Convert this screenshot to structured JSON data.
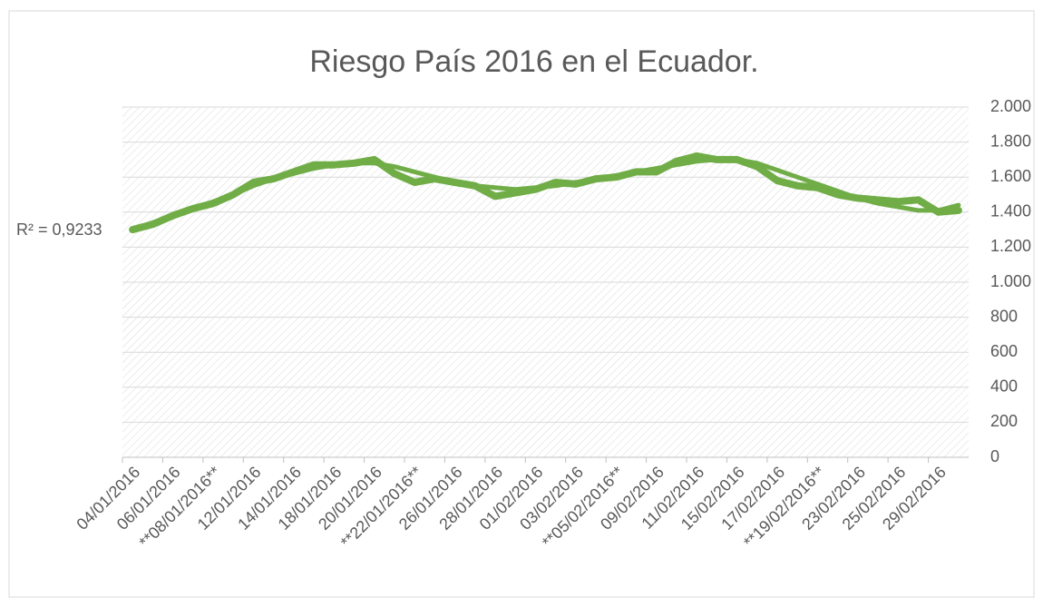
{
  "chart_data": {
    "type": "line",
    "title": "Riesgo País 2016 en el Ecuador.",
    "annotations": [
      "R² = 0,9233"
    ],
    "categories": [
      "04/01/2016",
      null,
      "06/01/2016",
      null,
      "**08/01/2016**",
      null,
      "12/01/2016",
      null,
      "14/01/2016",
      null,
      "18/01/2016",
      null,
      "20/01/2016",
      null,
      "**22/01/2016**",
      null,
      "26/01/2016",
      null,
      "28/01/2016",
      null,
      "01/02/2016",
      null,
      "03/02/2016",
      null,
      "**05/02/2016**",
      null,
      "09/02/2016",
      null,
      "11/02/2016",
      null,
      "15/02/2016",
      null,
      "17/02/2016",
      null,
      "**19/02/2016**",
      null,
      "23/02/2016",
      null,
      "25/02/2016",
      null,
      "29/02/2016",
      null
    ],
    "series": [
      {
        "color": "#70ad47",
        "values": [
          1300,
          1330,
          1380,
          1420,
          1450,
          1500,
          1570,
          1590,
          1630,
          1670,
          1670,
          1680,
          1700,
          1620,
          1570,
          1590,
          1570,
          1550,
          1490,
          1510,
          1530,
          1570,
          1560,
          1590,
          1600,
          1630,
          1630,
          1690,
          1720,
          1700,
          1700,
          1660,
          1580,
          1550,
          1540,
          1500,
          1480,
          1470,
          1460,
          1470,
          1400,
          1410
        ]
      },
      {
        "color": "#70ad47",
        "values": [
          1300,
          1340,
          1380,
          1420,
          1460,
          1500,
          1550,
          1590,
          1620,
          1650,
          1670,
          1680,
          1680,
          1660,
          1630,
          1600,
          1570,
          1550,
          1540,
          1530,
          1540,
          1550,
          1570,
          1590,
          1610,
          1630,
          1650,
          1670,
          1690,
          1700,
          1700,
          1680,
          1640,
          1600,
          1560,
          1520,
          1480,
          1450,
          1430,
          1410,
          1410,
          1440
        ]
      }
    ],
    "ylim": [
      0,
      2000
    ],
    "yticks": [
      0,
      200,
      400,
      600,
      800,
      {
        "value": 1000,
        "label": "1.000"
      },
      {
        "value": 1200,
        "label": "1.200"
      },
      {
        "value": 1400,
        "label": "1.400"
      },
      {
        "value": 1600,
        "label": "1.600"
      },
      {
        "value": 1800,
        "label": "1.800"
      },
      {
        "value": 2000,
        "label": "2.000"
      }
    ],
    "grid": true
  }
}
